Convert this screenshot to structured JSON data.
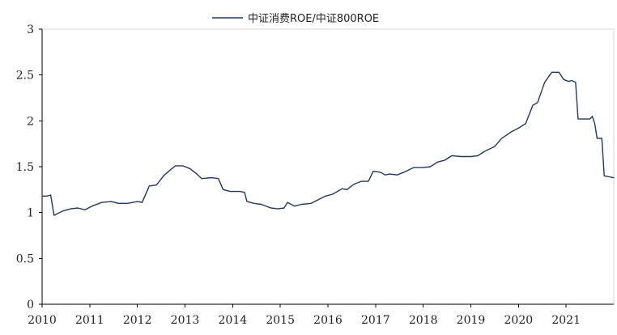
{
  "chart_data": {
    "type": "line",
    "title": "",
    "xlabel": "",
    "ylabel": "",
    "ylim": [
      0,
      3
    ],
    "xlim": [
      2010,
      2022
    ],
    "yticks": [
      "0",
      "0.5",
      "1",
      "1.5",
      "2",
      "2.5",
      "3"
    ],
    "xticks": [
      "2010",
      "2011",
      "2012",
      "2013",
      "2014",
      "2015",
      "2016",
      "2017",
      "2018",
      "2019",
      "2020",
      "2021"
    ],
    "grid": false,
    "legend_position": "top",
    "series": [
      {
        "name": "中证消费ROE/中证800ROE",
        "color": "#1f3864",
        "points": [
          [
            2010.0,
            1.18
          ],
          [
            2010.1,
            1.18
          ],
          [
            2010.18,
            1.19
          ],
          [
            2010.25,
            0.97
          ],
          [
            2010.33,
            0.99
          ],
          [
            2010.45,
            1.02
          ],
          [
            2010.6,
            1.04
          ],
          [
            2010.75,
            1.05
          ],
          [
            2010.9,
            1.03
          ],
          [
            2011.05,
            1.07
          ],
          [
            2011.25,
            1.11
          ],
          [
            2011.45,
            1.12
          ],
          [
            2011.6,
            1.1
          ],
          [
            2011.8,
            1.1
          ],
          [
            2012.0,
            1.12
          ],
          [
            2012.1,
            1.11
          ],
          [
            2012.25,
            1.29
          ],
          [
            2012.4,
            1.3
          ],
          [
            2012.55,
            1.4
          ],
          [
            2012.7,
            1.47
          ],
          [
            2012.8,
            1.51
          ],
          [
            2012.95,
            1.51
          ],
          [
            2013.1,
            1.48
          ],
          [
            2013.25,
            1.42
          ],
          [
            2013.35,
            1.37
          ],
          [
            2013.55,
            1.38
          ],
          [
            2013.7,
            1.37
          ],
          [
            2013.8,
            1.25
          ],
          [
            2013.95,
            1.23
          ],
          [
            2014.15,
            1.23
          ],
          [
            2014.25,
            1.22
          ],
          [
            2014.3,
            1.12
          ],
          [
            2014.45,
            1.1
          ],
          [
            2014.6,
            1.09
          ],
          [
            2014.8,
            1.05
          ],
          [
            2014.95,
            1.04
          ],
          [
            2015.08,
            1.05
          ],
          [
            2015.15,
            1.11
          ],
          [
            2015.3,
            1.07
          ],
          [
            2015.45,
            1.09
          ],
          [
            2015.65,
            1.1
          ],
          [
            2015.8,
            1.14
          ],
          [
            2015.95,
            1.18
          ],
          [
            2016.1,
            1.2
          ],
          [
            2016.3,
            1.26
          ],
          [
            2016.4,
            1.25
          ],
          [
            2016.55,
            1.31
          ],
          [
            2016.7,
            1.34
          ],
          [
            2016.85,
            1.34
          ],
          [
            2016.95,
            1.45
          ],
          [
            2017.1,
            1.44
          ],
          [
            2017.2,
            1.41
          ],
          [
            2017.3,
            1.42
          ],
          [
            2017.45,
            1.41
          ],
          [
            2017.6,
            1.44
          ],
          [
            2017.8,
            1.49
          ],
          [
            2018.0,
            1.49
          ],
          [
            2018.15,
            1.5
          ],
          [
            2018.3,
            1.55
          ],
          [
            2018.45,
            1.57
          ],
          [
            2018.6,
            1.62
          ],
          [
            2018.8,
            1.61
          ],
          [
            2019.0,
            1.61
          ],
          [
            2019.15,
            1.62
          ],
          [
            2019.3,
            1.67
          ],
          [
            2019.5,
            1.72
          ],
          [
            2019.65,
            1.81
          ],
          [
            2019.85,
            1.88
          ],
          [
            2020.0,
            1.92
          ],
          [
            2020.15,
            1.97
          ],
          [
            2020.3,
            2.17
          ],
          [
            2020.4,
            2.2
          ],
          [
            2020.55,
            2.42
          ],
          [
            2020.7,
            2.53
          ],
          [
            2020.85,
            2.53
          ],
          [
            2020.95,
            2.45
          ],
          [
            2021.05,
            2.43
          ],
          [
            2021.12,
            2.44
          ],
          [
            2021.2,
            2.42
          ],
          [
            2021.25,
            2.02
          ],
          [
            2021.4,
            2.02
          ],
          [
            2021.5,
            2.02
          ],
          [
            2021.55,
            2.05
          ],
          [
            2021.6,
            1.97
          ],
          [
            2021.65,
            1.81
          ],
          [
            2021.75,
            1.81
          ],
          [
            2021.8,
            1.4
          ],
          [
            2021.9,
            1.39
          ],
          [
            2022.0,
            1.38
          ]
        ]
      }
    ]
  }
}
